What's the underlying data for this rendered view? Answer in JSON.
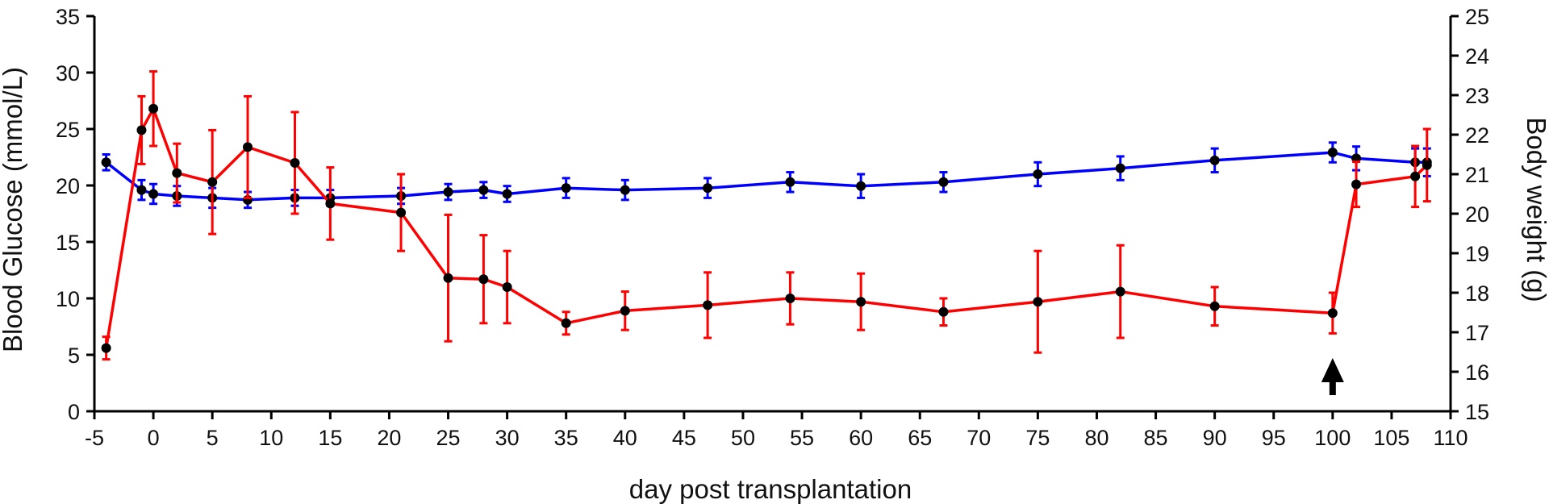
{
  "chart_data": {
    "type": "line",
    "xlabel": "day post transplantation",
    "ylabel_left": "Blood Glucose (mmol/L)",
    "ylabel_right": "Body weight (g)",
    "xlim": [
      -5,
      110
    ],
    "ylim_left": [
      0,
      35
    ],
    "ylim_right": [
      15,
      25
    ],
    "x_ticks": [
      "-5",
      "0",
      "5",
      "10",
      "15",
      "20",
      "25",
      "30",
      "35",
      "40",
      "45",
      "50",
      "55",
      "60",
      "65",
      "70",
      "75",
      "80",
      "85",
      "90",
      "95",
      "100",
      "105",
      "110"
    ],
    "y_left_ticks": [
      "0",
      "5",
      "10",
      "15",
      "20",
      "25",
      "30",
      "35"
    ],
    "y_right_ticks": [
      "15",
      "16",
      "17",
      "18",
      "19",
      "20",
      "21",
      "22",
      "23",
      "24",
      "25"
    ],
    "colors": {
      "glucose": "#ff0000",
      "weight": "#0000ff",
      "marker": "#000000",
      "arrow": "#000000"
    },
    "series": [
      {
        "name": "Blood Glucose",
        "axis": "left",
        "color": "#ff0000",
        "x": [
          -4,
          -1,
          0,
          2,
          5,
          8,
          12,
          15,
          21,
          25,
          28,
          30,
          35,
          40,
          47,
          54,
          60,
          67,
          75,
          82,
          90,
          100,
          102,
          107,
          108
        ],
        "y": [
          5.6,
          24.9,
          26.8,
          21.1,
          20.3,
          23.4,
          22.0,
          18.4,
          17.6,
          11.8,
          11.7,
          11.0,
          7.8,
          8.9,
          9.4,
          10.0,
          9.7,
          8.8,
          9.7,
          10.6,
          9.3,
          8.7,
          20.1,
          20.8,
          21.8
        ],
        "err": [
          1.0,
          3.0,
          3.3,
          2.6,
          4.6,
          4.5,
          4.5,
          3.2,
          3.4,
          5.6,
          3.9,
          3.2,
          1.0,
          1.7,
          2.9,
          2.3,
          2.5,
          1.2,
          4.5,
          4.1,
          1.7,
          1.8,
          2.0,
          2.7,
          3.2
        ]
      },
      {
        "name": "Body weight",
        "axis": "right",
        "color": "#0000ff",
        "x": [
          -4,
          -1,
          0,
          2,
          5,
          8,
          12,
          15,
          21,
          25,
          28,
          30,
          35,
          40,
          47,
          54,
          60,
          67,
          75,
          82,
          90,
          100,
          102,
          107,
          108
        ],
        "y": [
          21.3,
          20.6,
          20.5,
          20.45,
          20.4,
          20.35,
          20.4,
          20.4,
          20.45,
          20.55,
          20.6,
          20.5,
          20.65,
          20.6,
          20.65,
          20.8,
          20.7,
          20.8,
          21.0,
          21.15,
          21.35,
          21.55,
          21.4,
          21.3,
          21.3
        ],
        "err": [
          0.2,
          0.25,
          0.25,
          0.25,
          0.25,
          0.2,
          0.2,
          0.2,
          0.2,
          0.2,
          0.2,
          0.2,
          0.25,
          0.25,
          0.25,
          0.25,
          0.3,
          0.25,
          0.3,
          0.3,
          0.3,
          0.25,
          0.3,
          0.35,
          0.35
        ]
      }
    ],
    "annotations": [
      {
        "type": "arrow",
        "x": 100,
        "direction": "up"
      }
    ]
  }
}
